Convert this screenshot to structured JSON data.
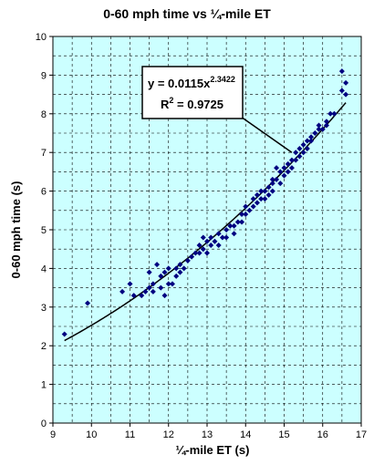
{
  "chart_data": {
    "type": "scatter",
    "title": "0-60 mph time vs ¼-mile ET",
    "xlabel": "¼-mile ET (s)",
    "ylabel": "0-60 mph time (s)",
    "xlim": [
      9,
      17
    ],
    "ylim": [
      0,
      10
    ],
    "x_ticks": [
      "9",
      "10",
      "11",
      "12",
      "13",
      "14",
      "15",
      "16",
      "17"
    ],
    "y_ticks": [
      "0",
      "1",
      "2",
      "3",
      "4",
      "5",
      "6",
      "7",
      "8",
      "9",
      "10"
    ],
    "grid": true,
    "colors": {
      "plot_background": "#ccffff",
      "grid": "#000000",
      "marker": "#000080",
      "trendline": "#000000"
    },
    "trendline": {
      "type": "power",
      "coefficient": 0.0115,
      "exponent": 2.3422,
      "equation_prefix": "y = 0.0115x",
      "equation_exponent": "2.3422",
      "r2_prefix": "R",
      "r2_exponent": "2",
      "r2_value": " = 0.9725"
    },
    "series": [
      {
        "points": [
          [
            9.3,
            2.3
          ],
          [
            9.9,
            3.1
          ],
          [
            10.8,
            3.4
          ],
          [
            11.0,
            3.6
          ],
          [
            11.1,
            3.3
          ],
          [
            11.3,
            3.3
          ],
          [
            11.4,
            3.4
          ],
          [
            11.5,
            3.5
          ],
          [
            11.5,
            3.9
          ],
          [
            11.6,
            3.6
          ],
          [
            11.6,
            3.4
          ],
          [
            11.7,
            4.1
          ],
          [
            11.8,
            3.5
          ],
          [
            11.8,
            3.8
          ],
          [
            11.9,
            3.3
          ],
          [
            11.9,
            3.9
          ],
          [
            12.0,
            4.0
          ],
          [
            12.0,
            3.6
          ],
          [
            12.1,
            3.6
          ],
          [
            12.2,
            3.8
          ],
          [
            12.2,
            4.0
          ],
          [
            12.3,
            4.1
          ],
          [
            12.3,
            3.9
          ],
          [
            12.4,
            4.0
          ],
          [
            12.5,
            4.2
          ],
          [
            12.6,
            4.3
          ],
          [
            12.7,
            4.4
          ],
          [
            12.8,
            4.4
          ],
          [
            12.8,
            4.6
          ],
          [
            12.9,
            4.5
          ],
          [
            12.9,
            4.8
          ],
          [
            13.0,
            4.4
          ],
          [
            13.0,
            4.7
          ],
          [
            13.1,
            4.6
          ],
          [
            13.1,
            4.8
          ],
          [
            13.2,
            4.7
          ],
          [
            13.3,
            4.9
          ],
          [
            13.3,
            4.6
          ],
          [
            13.4,
            4.8
          ],
          [
            13.5,
            5.0
          ],
          [
            13.5,
            4.8
          ],
          [
            13.6,
            5.1
          ],
          [
            13.7,
            5.1
          ],
          [
            13.7,
            4.9
          ],
          [
            13.8,
            5.2
          ],
          [
            13.9,
            5.4
          ],
          [
            13.9,
            5.2
          ],
          [
            14.0,
            5.4
          ],
          [
            14.0,
            5.6
          ],
          [
            14.1,
            5.5
          ],
          [
            14.2,
            5.6
          ],
          [
            14.2,
            5.8
          ],
          [
            14.3,
            5.7
          ],
          [
            14.3,
            5.9
          ],
          [
            14.4,
            5.8
          ],
          [
            14.4,
            6.0
          ],
          [
            14.5,
            6.0
          ],
          [
            14.5,
            5.8
          ],
          [
            14.6,
            6.1
          ],
          [
            14.6,
            5.9
          ],
          [
            14.7,
            6.2
          ],
          [
            14.7,
            6.3
          ],
          [
            14.7,
            6.0
          ],
          [
            14.8,
            6.3
          ],
          [
            14.8,
            6.6
          ],
          [
            14.9,
            6.5
          ],
          [
            14.9,
            6.2
          ],
          [
            15.0,
            6.6
          ],
          [
            15.0,
            6.4
          ],
          [
            15.1,
            6.7
          ],
          [
            15.1,
            6.5
          ],
          [
            15.2,
            6.8
          ],
          [
            15.2,
            6.6
          ],
          [
            15.3,
            7.0
          ],
          [
            15.3,
            6.8
          ],
          [
            15.4,
            6.9
          ],
          [
            15.4,
            7.1
          ],
          [
            15.5,
            7.2
          ],
          [
            15.5,
            7.0
          ],
          [
            15.6,
            7.3
          ],
          [
            15.6,
            7.1
          ],
          [
            15.7,
            7.4
          ],
          [
            15.7,
            7.3
          ],
          [
            15.8,
            7.5
          ],
          [
            15.9,
            7.7
          ],
          [
            15.9,
            7.6
          ],
          [
            16.0,
            7.6
          ],
          [
            16.1,
            7.7
          ],
          [
            16.1,
            7.8
          ],
          [
            16.2,
            8.0
          ],
          [
            16.3,
            8.0
          ],
          [
            16.5,
            9.1
          ],
          [
            16.5,
            8.6
          ],
          [
            16.6,
            8.8
          ],
          [
            16.6,
            8.5
          ]
        ]
      }
    ]
  }
}
